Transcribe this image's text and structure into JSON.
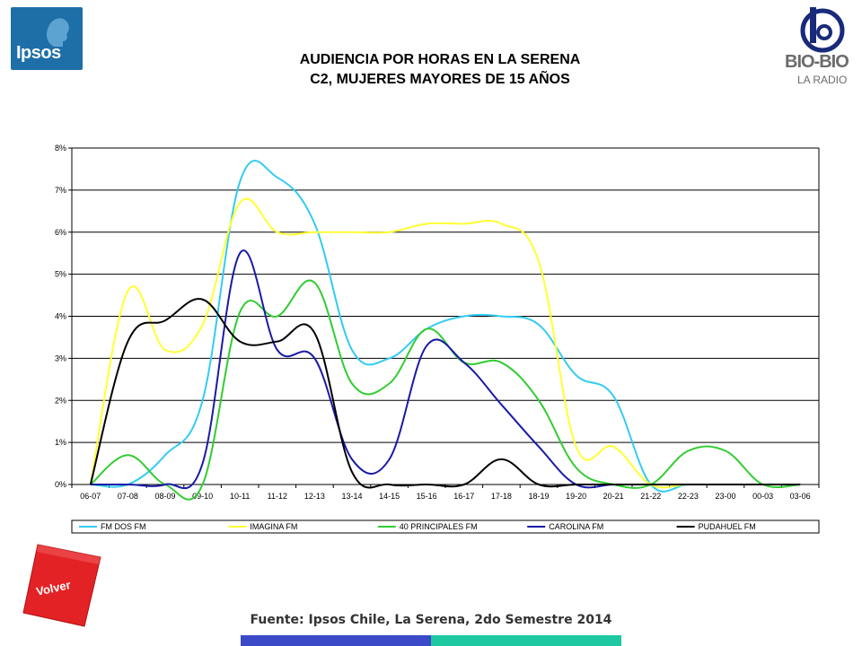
{
  "header": {
    "title_line1": "AUDIENCIA POR HORAS EN LA SERENA",
    "title_line2": "C2, MUJERES MAYORES DE 15 AÑOS"
  },
  "logos": {
    "ipsos_text": "Ipsos",
    "ipsos_color": "#1e6fa8",
    "biobio_text": "BIO-BIO",
    "biobio_sub": "LA RADIO"
  },
  "nav": {
    "back_label": "Volver",
    "back_color": "#e32226"
  },
  "footer": {
    "source": "Fuente: Ipsos Chile, La Serena, 2do Semestre 2014",
    "bar_left_color": "#3b4bc8",
    "bar_right_color": "#1ec8a0"
  },
  "chart_data": {
    "type": "line",
    "title": "",
    "xlabel": "",
    "ylabel": "",
    "ylim": [
      0,
      8
    ],
    "yticks": [
      "0%",
      "1%",
      "2%",
      "3%",
      "4%",
      "5%",
      "6%",
      "7%",
      "8%"
    ],
    "grid": true,
    "legend_position": "bottom",
    "categories": [
      "06-07",
      "07-08",
      "08-09",
      "09-10",
      "10-11",
      "11-12",
      "12-13",
      "13-14",
      "14-15",
      "15-16",
      "16-17",
      "17-18",
      "18-19",
      "19-20",
      "20-21",
      "21-22",
      "22-23",
      "23-00",
      "00-03",
      "03-06"
    ],
    "series": [
      {
        "name": "FM DOS FM",
        "color": "#33ccf0",
        "values": [
          0,
          0,
          0.7,
          2.0,
          7.2,
          7.3,
          6.2,
          3.2,
          3.0,
          3.7,
          4.0,
          4.0,
          3.8,
          2.6,
          2.1,
          0,
          0,
          0,
          0,
          0
        ]
      },
      {
        "name": "IMAGINA FM",
        "color": "#ffff33",
        "values": [
          0,
          4.6,
          3.2,
          3.8,
          6.7,
          6.0,
          6.0,
          6.0,
          6.0,
          6.2,
          6.2,
          6.2,
          5.3,
          0.9,
          0.9,
          0,
          0,
          0,
          0,
          0
        ]
      },
      {
        "name": "40 PRINCIPALES FM",
        "color": "#33cc33",
        "values": [
          0,
          0.7,
          0,
          0,
          4.1,
          4.0,
          4.8,
          2.4,
          2.4,
          3.7,
          2.9,
          2.9,
          2.0,
          0.4,
          0,
          0,
          0.8,
          0.8,
          0,
          0
        ]
      },
      {
        "name": "CAROLINA FM",
        "color": "#1a1aa6",
        "values": [
          0,
          0,
          0,
          0.5,
          5.5,
          3.2,
          3.0,
          0.6,
          0.6,
          3.3,
          2.9,
          1.9,
          0.9,
          0,
          0,
          0,
          0,
          0,
          0,
          0
        ]
      },
      {
        "name": "PUDAHUEL FM",
        "color": "#000000",
        "values": [
          0,
          3.4,
          3.9,
          4.4,
          3.4,
          3.4,
          3.6,
          0.3,
          0,
          0,
          0,
          0.6,
          0,
          0,
          0,
          0,
          0,
          0,
          0,
          0
        ]
      }
    ]
  }
}
